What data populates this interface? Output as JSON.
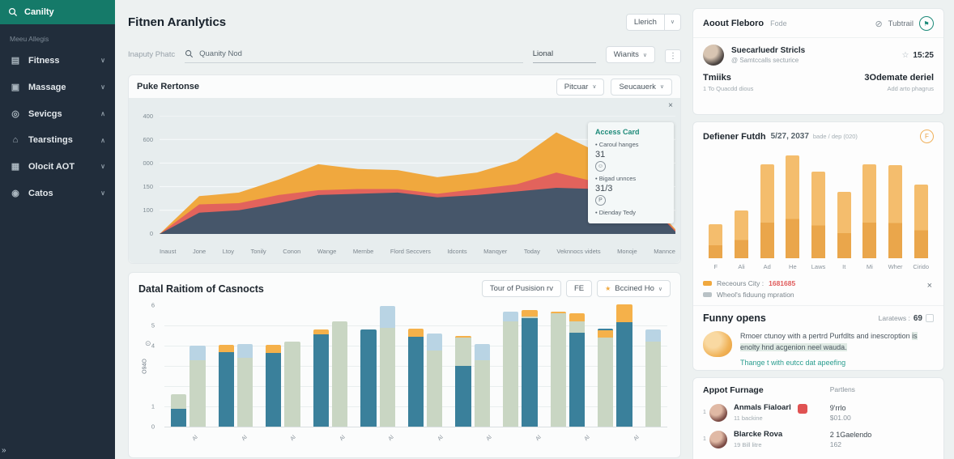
{
  "icons": {
    "chevron_down": "∨",
    "chevron_up": "∧",
    "kebab": "⋮",
    "star": "☆",
    "close": "×",
    "slash_circle": "⊘",
    "dot_circle": "⊙",
    "smiley": "☺",
    "p_badge": "P",
    "flag": "⚑",
    "orange_star": "★",
    "collapse": "»"
  },
  "colors": {
    "sidebar_bg": "#212d3b",
    "accent_teal": "#157a69",
    "area_dark": "#46566a",
    "area_red": "#e2635c",
    "area_orange": "#f0a83e",
    "bar_teal": "#3a809b",
    "bar_sage": "#c9d6c3",
    "bar_lightblue": "#b9d4e4",
    "bar_orange": "#f5b14a",
    "right_bar": "#f0b05a",
    "legend_value_red": "#e05c5c"
  },
  "sidebar": {
    "header_label": "Canilty",
    "section_label": "Meeu Allegis",
    "items": [
      {
        "label": "Fitness",
        "icon": "fitness-icon",
        "glyph": "▤",
        "chevron": "down"
      },
      {
        "label": "Massage",
        "icon": "massage-icon",
        "glyph": "▣",
        "chevron": "down"
      },
      {
        "label": "Sevicgs",
        "icon": "services-icon",
        "glyph": "◎",
        "chevron": "up"
      },
      {
        "label": "Tearstings",
        "icon": "tearstings-icon",
        "glyph": "⌂",
        "chevron": "up"
      },
      {
        "label": "Olocit AOT",
        "icon": "olocit-icon",
        "glyph": "▦",
        "chevron": "down"
      },
      {
        "label": "Catos",
        "icon": "catos-icon",
        "glyph": "◉",
        "chevron": "down"
      }
    ]
  },
  "header": {
    "title": "Fitnen Aranlytics",
    "action_label": "Llerich"
  },
  "search": {
    "label": "Inaputy Phatc",
    "query": "Quanity Nod",
    "right_value": "Lional",
    "select_value": "Wianits"
  },
  "area_card": {
    "title": "Puke Rertonse",
    "button1": "Pitcuar",
    "button2": "Seucauerk",
    "tooltip": {
      "title": "Access Card",
      "row1_label": "• Caroul hanges",
      "row1_value": "31",
      "row2_label": "• Bigad unnces",
      "row2_value": "31/3",
      "row3_label": "• Dienday Tedy"
    }
  },
  "bar_card": {
    "title": "Datal Raitiom of Casnocts",
    "button1": "Tour of Pusision rv",
    "button2": "FE",
    "button3": "Bccined Ho",
    "ylabel": "O94O"
  },
  "right": {
    "about": {
      "title": "Aoout Fleboro",
      "subtitle": "Fode",
      "action_label": "Tubtrail",
      "user_name": "Suecarluedr Stricls",
      "user_handle": "@ Samtccalls secturice",
      "time": "15:25",
      "stat1_label": "Tmiiks",
      "stat1_sub": "1 To Quacdd dious",
      "stat2_label": "3Odemate deriel",
      "stat2_sub": "Add arto phagrus"
    },
    "defiener": {
      "title": "Defiener Futdh",
      "date": "5/27, 2037",
      "note": "bade / dep (020)",
      "badge": "F",
      "legend1_label": "Receours City :",
      "legend1_value": "1681685",
      "legend2_label": "Wheol's fiduung mpration"
    },
    "funny": {
      "title": "Funny opens",
      "meta_label": "Laratews :",
      "meta_value": "69",
      "text_line1": "Rmoer ctunoy with a pertrd Purfdlts and inescroption",
      "text_line2": "is enolty hnd acgenion neel wauda.",
      "link": "Thange t with eutcc dat apeefing"
    },
    "table": {
      "title": "Appot Furnage",
      "col2": "Partlens",
      "rows": [
        {
          "index": "1",
          "name": "Anmals Fialoarl",
          "sub": "11 backine",
          "badge": true,
          "v1": "9'rrlo",
          "v2": "$01.00"
        },
        {
          "index": "1",
          "name": "Blarcke Rova",
          "sub": "19 Bill litre",
          "badge": false,
          "v1": "2 1Gaelendo",
          "v2": "162"
        }
      ]
    }
  },
  "chart_data": [
    {
      "type": "area",
      "title": "Puke Rertonse",
      "categories": [
        "Inaust",
        "Jone",
        "Ltoy",
        "Tonily",
        "Conon",
        "Wange",
        "Mernbe",
        "Flord Seccvers",
        "Idconts",
        "Manqyer",
        "Today",
        "Veknnocs videts",
        "Monoje",
        "Mannce"
      ],
      "ytick_labels": [
        "400",
        "600",
        "000",
        "150",
        "100",
        "0"
      ],
      "ylim": [
        0,
        100
      ],
      "grid": true,
      "legend_position": "tooltip-right",
      "series": [
        {
          "name": "base",
          "color": "#46566a",
          "values": [
            0,
            18,
            20,
            26,
            33,
            34,
            35,
            31,
            33,
            36,
            39,
            38,
            36,
            2
          ]
        },
        {
          "name": "mid",
          "color": "#e2635c",
          "values": [
            0,
            7,
            6,
            7,
            4,
            4,
            3,
            3,
            5,
            6,
            13,
            6,
            2,
            1
          ]
        },
        {
          "name": "top",
          "color": "#f0a83e",
          "values": [
            0,
            7,
            9,
            13,
            22,
            17,
            16,
            14,
            14,
            20,
            34,
            26,
            2,
            1
          ]
        }
      ]
    },
    {
      "type": "bar",
      "title": "Datal Raitiom of Casnocts",
      "ylabel": "O94O",
      "ytick_values": [
        6,
        5,
        4,
        1,
        0
      ],
      "ylim": [
        0,
        6
      ],
      "group_labels": [
        "Al",
        "Al",
        "Al",
        "Al",
        "Al",
        "Al",
        "Al",
        "Al",
        "Al",
        "Al"
      ],
      "bars": [
        {
          "segments": [
            [
              "teal",
              0.9
            ],
            [
              "sage",
              0.7
            ]
          ]
        },
        {
          "segments": [
            [
              "sage",
              3.3
            ],
            [
              "lightblue",
              0.7
            ]
          ]
        },
        {
          "segments": [
            [
              "teal",
              3.7
            ],
            [
              "orange",
              0.35
            ]
          ]
        },
        {
          "segments": [
            [
              "sage",
              3.4
            ],
            [
              "lightblue",
              0.7
            ]
          ]
        },
        {
          "segments": [
            [
              "teal",
              3.65
            ],
            [
              "orange",
              0.4
            ]
          ]
        },
        {
          "segments": [
            [
              "sage",
              4.2
            ]
          ]
        },
        {
          "segments": [
            [
              "teal",
              4.55
            ],
            [
              "orange",
              0.25
            ]
          ]
        },
        {
          "segments": [
            [
              "sage",
              5.2
            ]
          ]
        },
        {
          "segments": [
            [
              "teal",
              4.8
            ]
          ]
        },
        {
          "segments": [
            [
              "sage",
              4.9
            ],
            [
              "lightblue",
              1.05
            ]
          ]
        },
        {
          "segments": [
            [
              "teal",
              4.45
            ],
            [
              "orange",
              0.4
            ]
          ]
        },
        {
          "segments": [
            [
              "sage",
              3.75
            ],
            [
              "lightblue",
              0.85
            ]
          ]
        },
        {
          "segments": [
            [
              "teal",
              3.0
            ],
            [
              "sage",
              1.4
            ],
            [
              "orange",
              0.1
            ]
          ]
        },
        {
          "segments": [
            [
              "sage",
              3.3
            ],
            [
              "lightblue",
              0.8
            ]
          ]
        },
        {
          "segments": [
            [
              "sage",
              5.2
            ],
            [
              "lightblue",
              0.5
            ]
          ]
        },
        {
          "segments": [
            [
              "teal",
              5.35
            ],
            [
              "sage",
              0.1
            ],
            [
              "orange",
              0.3
            ]
          ]
        },
        {
          "segments": [
            [
              "sage",
              5.6
            ],
            [
              "orange",
              0.1
            ]
          ]
        },
        {
          "segments": [
            [
              "teal",
              4.65
            ],
            [
              "sage",
              0.55
            ],
            [
              "orange",
              0.4
            ]
          ]
        },
        {
          "segments": [
            [
              "sage",
              4.4
            ],
            [
              "orange",
              0.35
            ],
            [
              "teal",
              0.1
            ]
          ]
        },
        {
          "segments": [
            [
              "teal",
              5.15
            ],
            [
              "orange",
              0.9
            ]
          ]
        },
        {
          "segments": [
            [
              "sage",
              4.2
            ],
            [
              "lightblue",
              0.6
            ]
          ]
        }
      ]
    },
    {
      "type": "bar",
      "title": "Defiener Futdh",
      "categories": [
        "F",
        "Ali",
        "Ad",
        "He",
        "Laws",
        "It",
        "Mi",
        "Wher",
        "Cirido"
      ],
      "values": [
        32,
        45,
        88,
        96,
        81,
        62,
        88,
        87,
        69
      ],
      "ylim": [
        0,
        100
      ]
    }
  ]
}
